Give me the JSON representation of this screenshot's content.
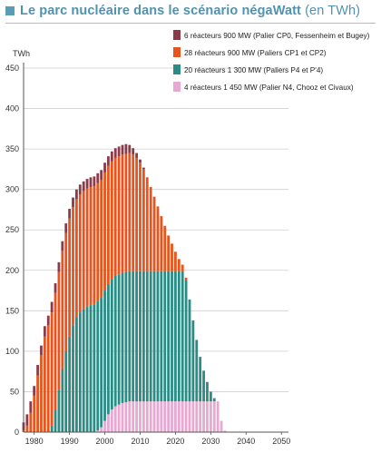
{
  "title": {
    "main": "Le parc nucléaire dans le scénario négaWatt",
    "unit": "(en TWh)"
  },
  "chart_data": {
    "type": "bar",
    "stacked": true,
    "ylabel": "TWh",
    "ylim": [
      0,
      450
    ],
    "yticks": [
      0,
      50,
      100,
      150,
      200,
      250,
      300,
      350,
      400,
      450
    ],
    "xlim": [
      1977,
      2052
    ],
    "xticks": [
      1980,
      1990,
      2000,
      2010,
      2020,
      2030,
      2040,
      2050
    ],
    "grid": true,
    "legend_position": "top-right",
    "x": [
      1977,
      1978,
      1979,
      1980,
      1981,
      1982,
      1983,
      1984,
      1985,
      1986,
      1987,
      1988,
      1989,
      1990,
      1991,
      1992,
      1993,
      1994,
      1995,
      1996,
      1997,
      1998,
      1999,
      2000,
      2001,
      2002,
      2003,
      2004,
      2005,
      2006,
      2007,
      2008,
      2009,
      2010,
      2011,
      2012,
      2013,
      2014,
      2015,
      2016,
      2017,
      2018,
      2019,
      2020,
      2021,
      2022,
      2023,
      2024,
      2025,
      2026,
      2027,
      2028,
      2029,
      2030,
      2031,
      2032,
      2033,
      2034
    ],
    "series": [
      {
        "name": "4 réacteurs 1 450 MW (Palier N4, Chooz et Civaux)",
        "color": "#e7a9d2",
        "values": [
          0,
          0,
          0,
          0,
          0,
          0,
          0,
          0,
          0,
          0,
          0,
          0,
          0,
          0,
          0,
          0,
          0,
          0,
          0,
          0,
          0,
          2,
          6,
          14,
          22,
          28,
          32,
          34,
          36,
          37,
          38,
          38,
          38,
          38,
          38,
          38,
          38,
          38,
          38,
          38,
          38,
          38,
          38,
          38,
          38,
          38,
          38,
          38,
          38,
          38,
          38,
          38,
          38,
          38,
          38,
          38,
          14,
          2
        ]
      },
      {
        "name": "20 réacteurs 1 300 MW (Paliers P4 et P'4)",
        "color": "#2b8c86",
        "values": [
          0,
          0,
          0,
          0,
          0,
          0,
          0,
          0,
          8,
          28,
          52,
          78,
          100,
          118,
          132,
          142,
          148,
          152,
          155,
          157,
          158,
          160,
          160,
          161,
          161,
          161,
          161,
          161,
          161,
          161,
          161,
          161,
          161,
          161,
          161,
          161,
          161,
          161,
          161,
          161,
          161,
          161,
          161,
          161,
          161,
          161,
          150,
          126,
          100,
          76,
          55,
          38,
          24,
          12,
          4,
          0,
          0,
          0
        ]
      },
      {
        "name": "28 réacteurs 900 MW (Paliers CP1 et CP2)",
        "color": "#e8541e",
        "values": [
          2,
          8,
          24,
          45,
          70,
          95,
          118,
          132,
          140,
          144,
          146,
          146,
          146,
          146,
          146,
          146,
          146,
          146,
          146,
          146,
          146,
          146,
          146,
          146,
          146,
          146,
          146,
          146,
          146,
          146,
          146,
          144,
          140,
          134,
          126,
          116,
          104,
          92,
          80,
          68,
          56,
          44,
          34,
          24,
          15,
          8,
          3,
          0,
          0,
          0,
          0,
          0,
          0,
          0,
          0,
          0,
          0,
          0
        ]
      },
      {
        "name": "6 réacteurs 900 MW (Palier CP0, Fessenheim et Bugey)",
        "color": "#8b3a4a",
        "values": [
          10,
          14,
          14,
          12,
          13,
          12,
          13,
          12,
          13,
          12,
          12,
          12,
          12,
          12,
          12,
          12,
          12,
          12,
          12,
          12,
          12,
          12,
          12,
          12,
          12,
          12,
          12,
          12,
          12,
          12,
          10,
          8,
          6,
          4,
          2,
          0,
          0,
          0,
          0,
          0,
          0,
          0,
          0,
          0,
          0,
          0,
          0,
          0,
          0,
          0,
          0,
          0,
          0,
          0,
          0,
          0,
          0,
          0
        ]
      }
    ]
  }
}
